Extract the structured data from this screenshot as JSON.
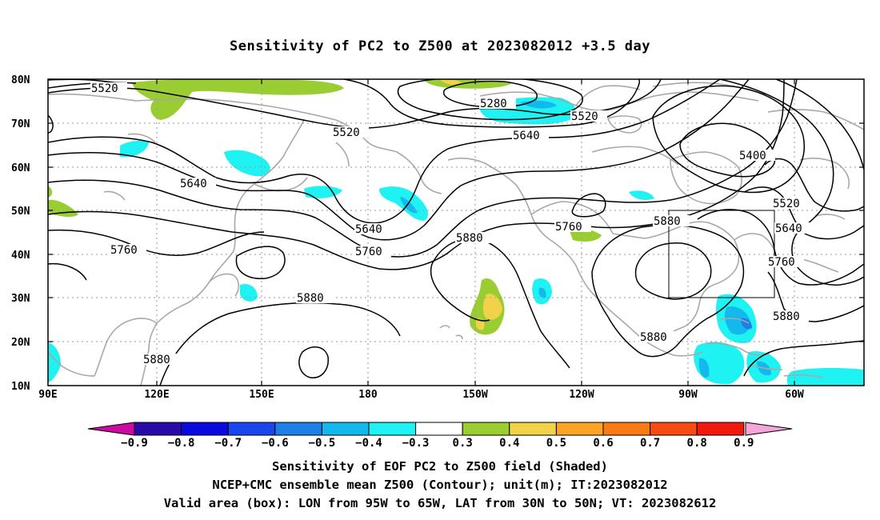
{
  "title": "Sensitivity of PC2 to Z500 at 2023082012 +3.5 day",
  "lat_labels": [
    "80N",
    "70N",
    "60N",
    "50N",
    "40N",
    "30N",
    "20N",
    "10N"
  ],
  "lon_labels": [
    "90E",
    "120E",
    "150E",
    "180",
    "150W",
    "120W",
    "90W",
    "60W"
  ],
  "contour_labels": [
    "5520",
    "5280",
    "5520",
    "5520",
    "5640",
    "5400",
    "5640",
    "5880",
    "5640",
    "5760",
    "5520",
    "5760",
    "5760",
    "5880",
    "5640",
    "5760",
    "5880",
    "5880",
    "5880",
    "5880"
  ],
  "colorbar": {
    "labels": [
      "−0.9",
      "−0.8",
      "−0.7",
      "−0.6",
      "−0.5",
      "−0.4",
      "−0.3",
      "0.3",
      "0.4",
      "0.5",
      "0.6",
      "0.7",
      "0.8",
      "0.9"
    ],
    "colors": [
      "#2a0aa8",
      "#0a0ae0",
      "#1a46f0",
      "#1e7fe6",
      "#13b8ec",
      "#1ef2f2",
      "#ffffff",
      "#9acd32",
      "#f2d24a",
      "#fca426",
      "#fa7a16",
      "#f84a12",
      "#f21a0c"
    ],
    "low_arrow_color": "#cc0ca0",
    "high_arrow_color": "#f4a6d8"
  },
  "captions": [
    "Sensitivity of EOF PC2 to Z500 field (Shaded)",
    "NCEP+CMC ensemble mean Z500 (Contour); unit(m); IT:2023082012",
    "Valid area (box): LON from 95W to 65W, LAT from 30N to 50N; VT: 2023082612"
  ],
  "valid_box": {
    "lon_min": "95W",
    "lon_max": "65W",
    "lat_min": "30N",
    "lat_max": "50N"
  }
}
